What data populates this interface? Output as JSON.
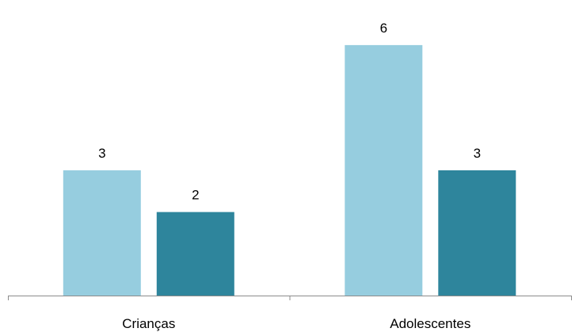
{
  "chart_data": {
    "type": "bar",
    "categories": [
      "Crianças",
      "Adolescentes"
    ],
    "series": [
      {
        "values": [
          3,
          6
        ],
        "color": "#96cddf"
      },
      {
        "values": [
          2,
          3
        ],
        "color": "#2e859c"
      }
    ],
    "ylim": [
      0,
      6.7
    ],
    "grid": false,
    "legend": "none",
    "data_labels": true
  }
}
